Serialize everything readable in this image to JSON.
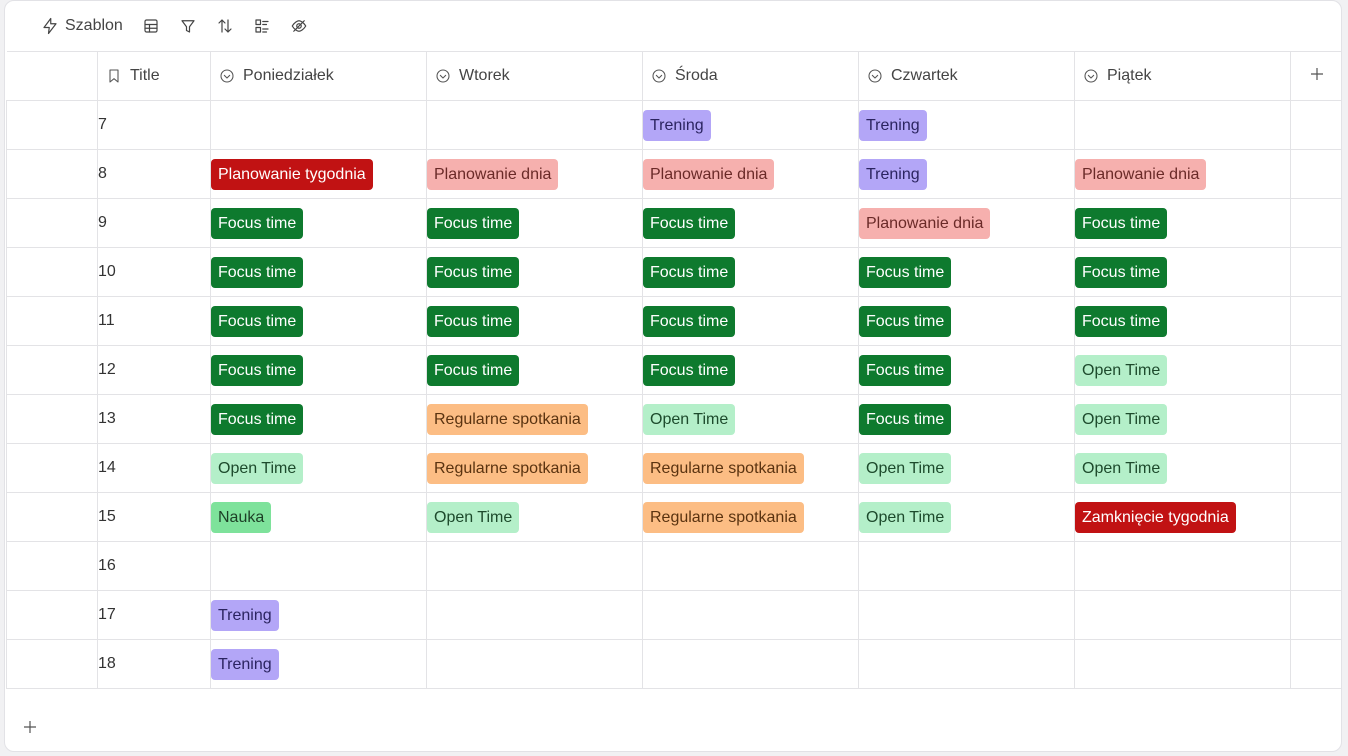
{
  "toolbar": {
    "template_label": "Szablon",
    "icons": [
      "lightning-icon",
      "table-view-icon",
      "filter-icon",
      "sort-icon",
      "group-icon",
      "hide-icon"
    ]
  },
  "table": {
    "title_header": "Title",
    "day_headers": [
      "Poniedziałek",
      "Wtorek",
      "Środa",
      "Czwartek",
      "Piątek"
    ],
    "rows": [
      {
        "title": "7",
        "cells": [
          "",
          "",
          "Trening",
          "Trening",
          ""
        ]
      },
      {
        "title": "8",
        "cells": [
          "Planowanie tygodnia",
          "Planowanie dnia",
          "Planowanie dnia",
          "Trening",
          "Planowanie dnia"
        ]
      },
      {
        "title": "9",
        "cells": [
          "Focus time",
          "Focus time",
          "Focus time",
          "Planowanie dnia",
          "Focus time"
        ]
      },
      {
        "title": "10",
        "cells": [
          "Focus time",
          "Focus time",
          "Focus time",
          "Focus time",
          "Focus time"
        ]
      },
      {
        "title": "11",
        "cells": [
          "Focus time",
          "Focus time",
          "Focus time",
          "Focus time",
          "Focus time"
        ]
      },
      {
        "title": "12",
        "cells": [
          "Focus time",
          "Focus time",
          "Focus time",
          "Focus time",
          "Open Time"
        ]
      },
      {
        "title": "13",
        "cells": [
          "Focus time",
          "Regularne spotkania",
          "Open Time",
          "Focus time",
          "Open Time"
        ]
      },
      {
        "title": "14",
        "cells": [
          "Open Time",
          "Regularne spotkania",
          "Regularne spotkania",
          "Open Time",
          "Open Time"
        ]
      },
      {
        "title": "15",
        "cells": [
          "Nauka",
          "Open Time",
          "Regularne spotkania",
          "Open Time",
          "Zamknięcie tygodnia"
        ]
      },
      {
        "title": "16",
        "cells": [
          "",
          "",
          "",
          "",
          ""
        ]
      },
      {
        "title": "17",
        "cells": [
          "Trening",
          "",
          "",
          "",
          ""
        ]
      },
      {
        "title": "18",
        "cells": [
          "Trening",
          "",
          "",
          "",
          ""
        ]
      }
    ]
  },
  "tag_colors": {
    "Focus time": "#0e7a2e",
    "Open Time": "#b4efc9",
    "Nauka": "#7ee29b",
    "Trening": "#b3a6f7",
    "Planowanie dnia": "#f6b0ae",
    "Planowanie tygodnia": "#c11213",
    "Zamknięcie tygodnia": "#c11213",
    "Regularne spotkania": "#fcbd84"
  }
}
